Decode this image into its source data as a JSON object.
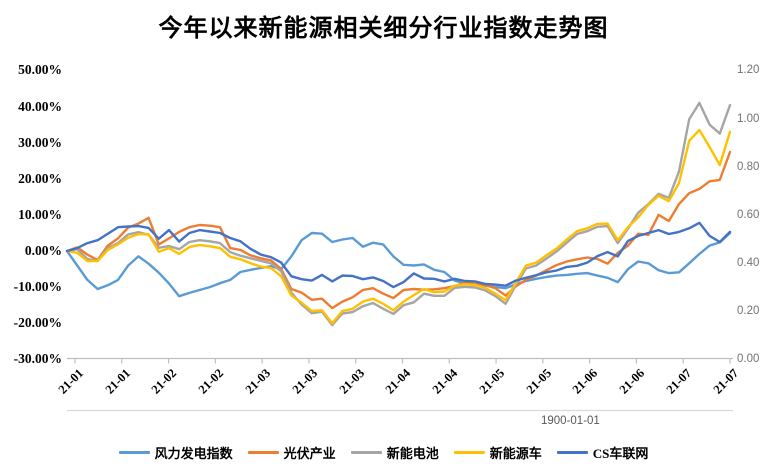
{
  "chart_data": {
    "type": "line",
    "title": "今年以来新能源相关细分行业指数走势图",
    "legend_position": "bottom",
    "grid": "off",
    "x_axis": {
      "labels": [
        "21-01",
        "21-01",
        "21-02",
        "21-02",
        "21-03",
        "21-03",
        "21-03",
        "21-04",
        "21-04",
        "21-05",
        "21-05",
        "21-06",
        "21-06",
        "21-07",
        "21-07"
      ],
      "secondary_label": "1900-01-01"
    },
    "y_axis_left": {
      "ticks": [
        "50.00%",
        "40.00%",
        "30.00%",
        "20.00%",
        "10.00%",
        "0.00%",
        "-10.00%",
        "-20.00%",
        "-30.00%"
      ],
      "max": 50,
      "min": -30,
      "unit": "percent"
    },
    "y_axis_right": {
      "ticks": [
        "1.20",
        "1.00",
        "0.80",
        "0.60",
        "0.40",
        "0.20",
        "0.00"
      ],
      "max": 1.2,
      "min": 0
    },
    "axis_color": "#BFBFBF",
    "secondary_axis_line_color": "#D9D9D9",
    "series": [
      {
        "name": "风力发电指数",
        "color": "#5B9BD5",
        "values_pct": [
          0,
          -4,
          -8,
          -10.5,
          -9.5,
          -8,
          -4,
          -1.5,
          -3.5,
          -6,
          -9,
          -12.5,
          -11.6,
          -10.8,
          -10,
          -8.9,
          -8,
          -5.8,
          -5.2,
          -4.7,
          -4.2,
          -5,
          -1.5,
          3,
          5,
          4.8,
          2.5,
          3.2,
          3.6,
          1.2,
          2.3,
          1.8,
          -1.5,
          -3.8,
          -4,
          -3.7,
          -5.2,
          -5.8,
          -8.2,
          -9,
          -9.3,
          -9.6,
          -10,
          -10.3,
          -9.2,
          -8.3,
          -7.7,
          -7.2,
          -6.8,
          -6.6,
          -6.3,
          -6.1,
          -6.8,
          -7.4,
          -8.6,
          -5,
          -2.9,
          -3.4,
          -5.3,
          -6.1,
          -5.9,
          -3.4,
          -0.8,
          1.5,
          2.4,
          5
        ]
      },
      {
        "name": "光伏产业",
        "color": "#ED7D31",
        "values_pct": [
          0,
          1,
          -1,
          -2.5,
          1.5,
          3.5,
          6.5,
          7.6,
          9.2,
          1.8,
          3.5,
          5.3,
          6.6,
          7.2,
          7,
          6.6,
          0.8,
          0.3,
          -1.2,
          -2,
          -2.6,
          -5,
          -10.5,
          -11.5,
          -13.5,
          -13.2,
          -15.8,
          -14,
          -12.8,
          -10.8,
          -10.3,
          -11.8,
          -13,
          -10.8,
          -10.5,
          -10.7,
          -10.6,
          -10.3,
          -9.7,
          -8.8,
          -9.1,
          -9.4,
          -10.3,
          -12.3,
          -9.8,
          -8,
          -6.8,
          -5.3,
          -3.9,
          -2.9,
          -2.3,
          -1.8,
          -2.2,
          -3.5,
          -0.5,
          1.5,
          4.8,
          4.5,
          10,
          8.3,
          13,
          16,
          17.2,
          19.3,
          19.7,
          27.4
        ]
      },
      {
        "name": "新能电池",
        "color": "#A5A5A5",
        "values_pct": [
          0,
          0.5,
          -2.2,
          -2.8,
          0.8,
          2.2,
          4.6,
          5.2,
          4.5,
          0.9,
          1.4,
          0.5,
          2.5,
          3,
          2.7,
          2.2,
          -0.3,
          -1.3,
          -2,
          -2.7,
          -3.4,
          -5.6,
          -11.5,
          -14.8,
          -17.2,
          -16.8,
          -20.5,
          -17.3,
          -16.9,
          -15.3,
          -14.4,
          -16,
          -17.4,
          -15,
          -14.2,
          -11.8,
          -12.4,
          -12.4,
          -10.2,
          -9.9,
          -10.1,
          -10.9,
          -12.5,
          -14.6,
          -9.5,
          -4.8,
          -4,
          -2.1,
          -0.1,
          2.3,
          4.7,
          5.5,
          6.7,
          6.9,
          2.2,
          6.2,
          10.6,
          13,
          15.8,
          14.7,
          22,
          36.5,
          41,
          35,
          32.5,
          40.4
        ]
      },
      {
        "name": "新能源车",
        "color": "#FFC000",
        "values_pct": [
          0,
          -0.5,
          -2.8,
          -2.8,
          0.3,
          1.8,
          3.7,
          4.7,
          4.6,
          -0.2,
          0.8,
          -0.8,
          1.1,
          1.7,
          1.3,
          0.8,
          -1.6,
          -2.3,
          -3.4,
          -4.3,
          -4.7,
          -7,
          -12.3,
          -14.3,
          -16.6,
          -16.4,
          -20,
          -16.6,
          -16,
          -14,
          -13.2,
          -14.6,
          -16.4,
          -14,
          -12.2,
          -10.5,
          -11.4,
          -11.2,
          -9.6,
          -9.2,
          -9.4,
          -10.2,
          -11.8,
          -13.6,
          -8.8,
          -4,
          -3.2,
          -1.2,
          0.7,
          3.2,
          5.5,
          6.3,
          7.5,
          7.6,
          3,
          6.6,
          9.3,
          12.8,
          15.3,
          13.8,
          18.8,
          30.5,
          33.5,
          28.8,
          23.8,
          33
        ]
      },
      {
        "name": "CS车联网",
        "color": "#4472C4",
        "values_pct": [
          0,
          0.8,
          2.2,
          3,
          4.8,
          6.6,
          6.8,
          6.9,
          6.4,
          3.4,
          5.8,
          2.6,
          5,
          5.8,
          5.4,
          5,
          3.6,
          2.7,
          0.6,
          -1,
          -1.7,
          -3.2,
          -7,
          -7.8,
          -8.2,
          -6.6,
          -8.4,
          -6.8,
          -6.9,
          -7.8,
          -7.3,
          -8.3,
          -10,
          -8.6,
          -6.2,
          -7.6,
          -7.7,
          -8.4,
          -7.7,
          -8.3,
          -8.4,
          -9.1,
          -9.3,
          -9.6,
          -8.2,
          -7.4,
          -6.7,
          -5.9,
          -5.4,
          -4.4,
          -4.1,
          -3.2,
          -1.4,
          -0.3,
          -1.5,
          2.8,
          4.2,
          5,
          5.8,
          4.7,
          5.3,
          6.3,
          7.8,
          4.2,
          2.5,
          5.3
        ]
      }
    ]
  }
}
